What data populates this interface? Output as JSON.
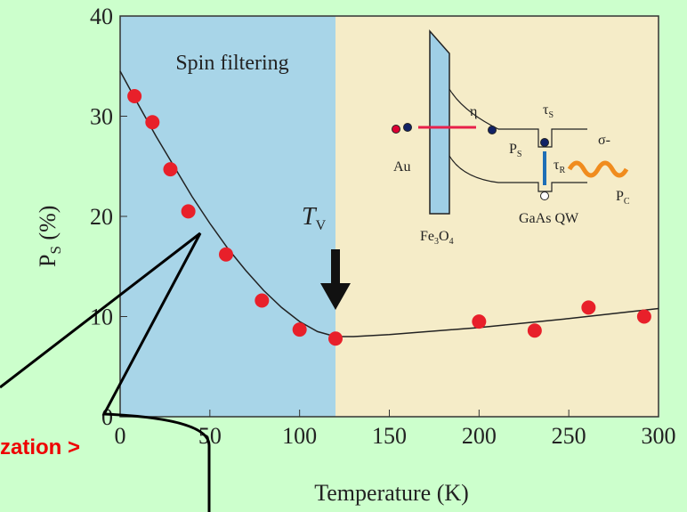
{
  "chart_data": {
    "type": "scatter",
    "xlabel": "Temperature (K)",
    "ylabel": {
      "main": "P",
      "sub": "S",
      "suffix": " (%)"
    },
    "xlim": [
      0,
      300
    ],
    "xticks": [
      0,
      50,
      100,
      150,
      200,
      250,
      300
    ],
    "ylim": [
      0,
      40
    ],
    "yticks": [
      0,
      10,
      20,
      30,
      40
    ],
    "regions": [
      {
        "text": "Spin filtering",
        "x": [
          0,
          120
        ],
        "color": "#a8d5e8"
      },
      {
        "x": [
          120,
          300
        ],
        "color": "#f5ecc8"
      }
    ],
    "series": [
      {
        "kind": "points",
        "color": "#e8202a",
        "x": [
          8,
          18,
          28,
          38,
          59,
          79,
          100,
          120,
          200,
          231,
          261,
          292
        ],
        "values": [
          32,
          29.4,
          24.7,
          20.5,
          16.2,
          11.6,
          8.7,
          7.8,
          9.5,
          8.6,
          10.9,
          10
        ]
      },
      {
        "kind": "line",
        "color": "#222222",
        "x": [
          0,
          10,
          20,
          30,
          40,
          50,
          60,
          70,
          80,
          90,
          100,
          110,
          120,
          130,
          150,
          200,
          250,
          300
        ],
        "values": [
          34.5,
          31.2,
          28,
          25,
          22,
          19.3,
          16.8,
          14.6,
          12.6,
          10.9,
          9.5,
          8.5,
          8,
          8,
          8.2,
          8.9,
          9.8,
          10.8
        ]
      }
    ],
    "marker": {
      "x": 120,
      "text": "T",
      "sub": "V"
    }
  },
  "inset": {
    "labels": [
      {
        "text": "Au"
      },
      {
        "text": "η"
      },
      {
        "text": "τ",
        "sub": "S"
      },
      {
        "text": "P",
        "sub": "S"
      },
      {
        "text": "τ",
        "sub": "R"
      },
      {
        "text": "σ-"
      },
      {
        "text": "P",
        "sub": "C"
      },
      {
        "text": "Fe",
        "sub": "3",
        "rest": "O",
        "sub2": "4"
      },
      {
        "text": "GaAs QW"
      }
    ]
  },
  "callout": {
    "text": "zation >"
  }
}
